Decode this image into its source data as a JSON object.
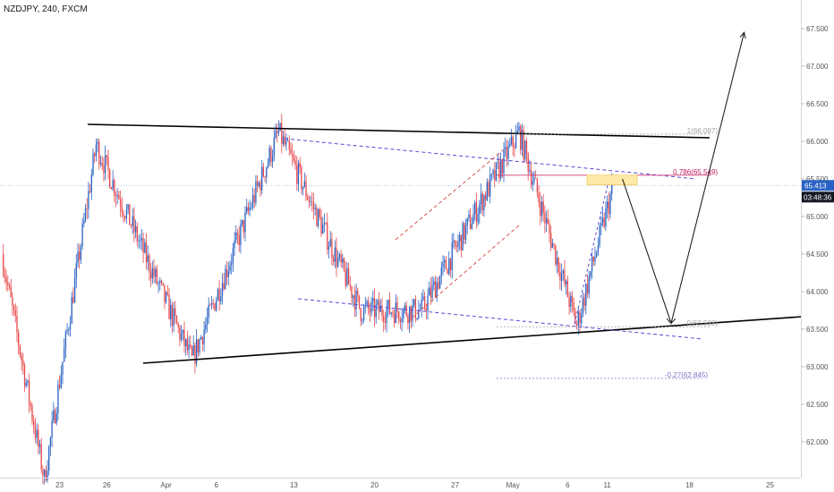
{
  "symbol_line": "NZDJPY, 240, FXCM",
  "colors": {
    "up": "#2962c4",
    "down": "#e8474a",
    "trend_line": "#000000",
    "channel_blue": "#5b45d6",
    "channel_red": "#d9534f",
    "fib_ref": "#c2185b",
    "fib_neutral": "#9e9e9e",
    "fib_ext": "#7e71c7",
    "price_badge": "#2962c4",
    "countdown_badge": "#131722",
    "target_zone": "#ffe9a8",
    "axis_text": "#555555"
  },
  "chart_data": {
    "type": "candlestick",
    "symbol": "NZDJPY",
    "timeframe": "240",
    "source": "FXCM",
    "x_axis": {
      "tick_labels": [
        "23",
        "26",
        "Apr",
        "6",
        "13",
        "20",
        "27",
        "May",
        "6",
        "11",
        "18",
        "25"
      ]
    },
    "y_axis": {
      "range": [
        61.5,
        67.8
      ],
      "tick_labels": [
        "62.000",
        "62.500",
        "63.000",
        "63.500",
        "64.000",
        "64.500",
        "65.000",
        "65.500",
        "66.000",
        "66.500",
        "67.000",
        "67.500"
      ],
      "tick_values": [
        62.0,
        62.5,
        63.0,
        63.5,
        64.0,
        64.5,
        65.0,
        65.5,
        66.0,
        66.5,
        67.0,
        67.5
      ]
    },
    "last_price": "65.413",
    "countdown": "03:48:36",
    "fib_levels": [
      {
        "label": "1(66.097)",
        "value": 66.097
      },
      {
        "label": "0.786(65.549)",
        "value": 65.549
      },
      {
        "label": "0(63.533)",
        "value": 63.533
      },
      {
        "label": "-0.27(62.845)",
        "value": 62.845
      }
    ],
    "key_points": [
      {
        "name": "low_march",
        "bar": 28,
        "price": 61.5
      },
      {
        "name": "high_march",
        "bar": 62,
        "price": 65.95
      },
      {
        "name": "low_april",
        "bar": 125,
        "price": 63.08
      },
      {
        "name": "high_april",
        "bar": 182,
        "price": 66.12
      },
      {
        "name": "low_april_mid",
        "bar": 236,
        "price": 63.75
      },
      {
        "name": "low_april_late",
        "bar": 276,
        "price": 63.75
      },
      {
        "name": "high_may",
        "bar": 340,
        "price": 66.12
      },
      {
        "name": "low_may",
        "bar": 378,
        "price": 63.55
      },
      {
        "name": "last_bar",
        "bar": 402,
        "price": 65.413
      }
    ],
    "projection": [
      {
        "bar": 408,
        "price": 65.5
      },
      {
        "bar": 440,
        "price": 63.58
      },
      {
        "bar": 488,
        "price": 67.45
      }
    ]
  }
}
